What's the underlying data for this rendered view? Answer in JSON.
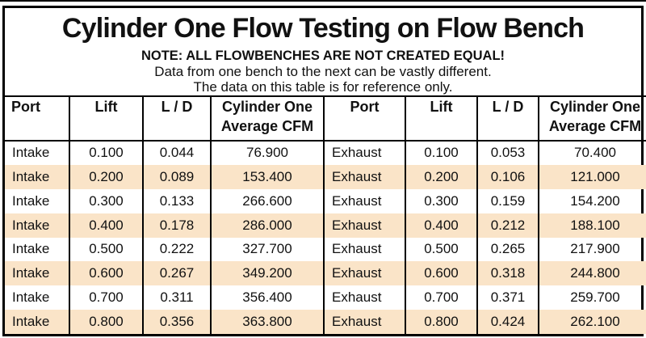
{
  "title": "Cylinder One Flow Testing on Flow Bench",
  "note": {
    "line1": "NOTE: ALL FLOWBENCHES ARE NOT CREATED EQUAL!",
    "line2": "Data from one bench to the next can be vastly different.",
    "line3": "The data on this table is for reference only."
  },
  "colors": {
    "row_shade": "#FAE4C8",
    "border": "#000000",
    "text": "#111111"
  },
  "chart_data": {
    "type": "table",
    "title": "Cylinder One Flow Testing on Flow Bench",
    "columns": [
      "Port",
      "Lift",
      "L / D",
      "Cylinder One Average CFM",
      "Port",
      "Lift",
      "L / D",
      "Cylinder One Average CFM"
    ],
    "rows": [
      [
        "Intake",
        "0.100",
        "0.044",
        "76.900",
        "Exhaust",
        "0.100",
        "0.053",
        "70.400"
      ],
      [
        "Intake",
        "0.200",
        "0.089",
        "153.400",
        "Exhaust",
        "0.200",
        "0.106",
        "121.000"
      ],
      [
        "Intake",
        "0.300",
        "0.133",
        "266.600",
        "Exhaust",
        "0.300",
        "0.159",
        "154.200"
      ],
      [
        "Intake",
        "0.400",
        "0.178",
        "286.000",
        "Exhaust",
        "0.400",
        "0.212",
        "188.100"
      ],
      [
        "Intake",
        "0.500",
        "0.222",
        "327.700",
        "Exhaust",
        "0.500",
        "0.265",
        "217.900"
      ],
      [
        "Intake",
        "0.600",
        "0.267",
        "349.200",
        "Exhaust",
        "0.600",
        "0.318",
        "244.800"
      ],
      [
        "Intake",
        "0.700",
        "0.311",
        "356.400",
        "Exhaust",
        "0.700",
        "0.371",
        "259.700"
      ],
      [
        "Intake",
        "0.800",
        "0.356",
        "363.800",
        "Exhaust",
        "0.800",
        "0.424",
        "262.100"
      ]
    ],
    "layout": {
      "shaded_row_indices": [
        1,
        3,
        5,
        7
      ],
      "port_column_indices": [
        0,
        4
      ]
    }
  }
}
